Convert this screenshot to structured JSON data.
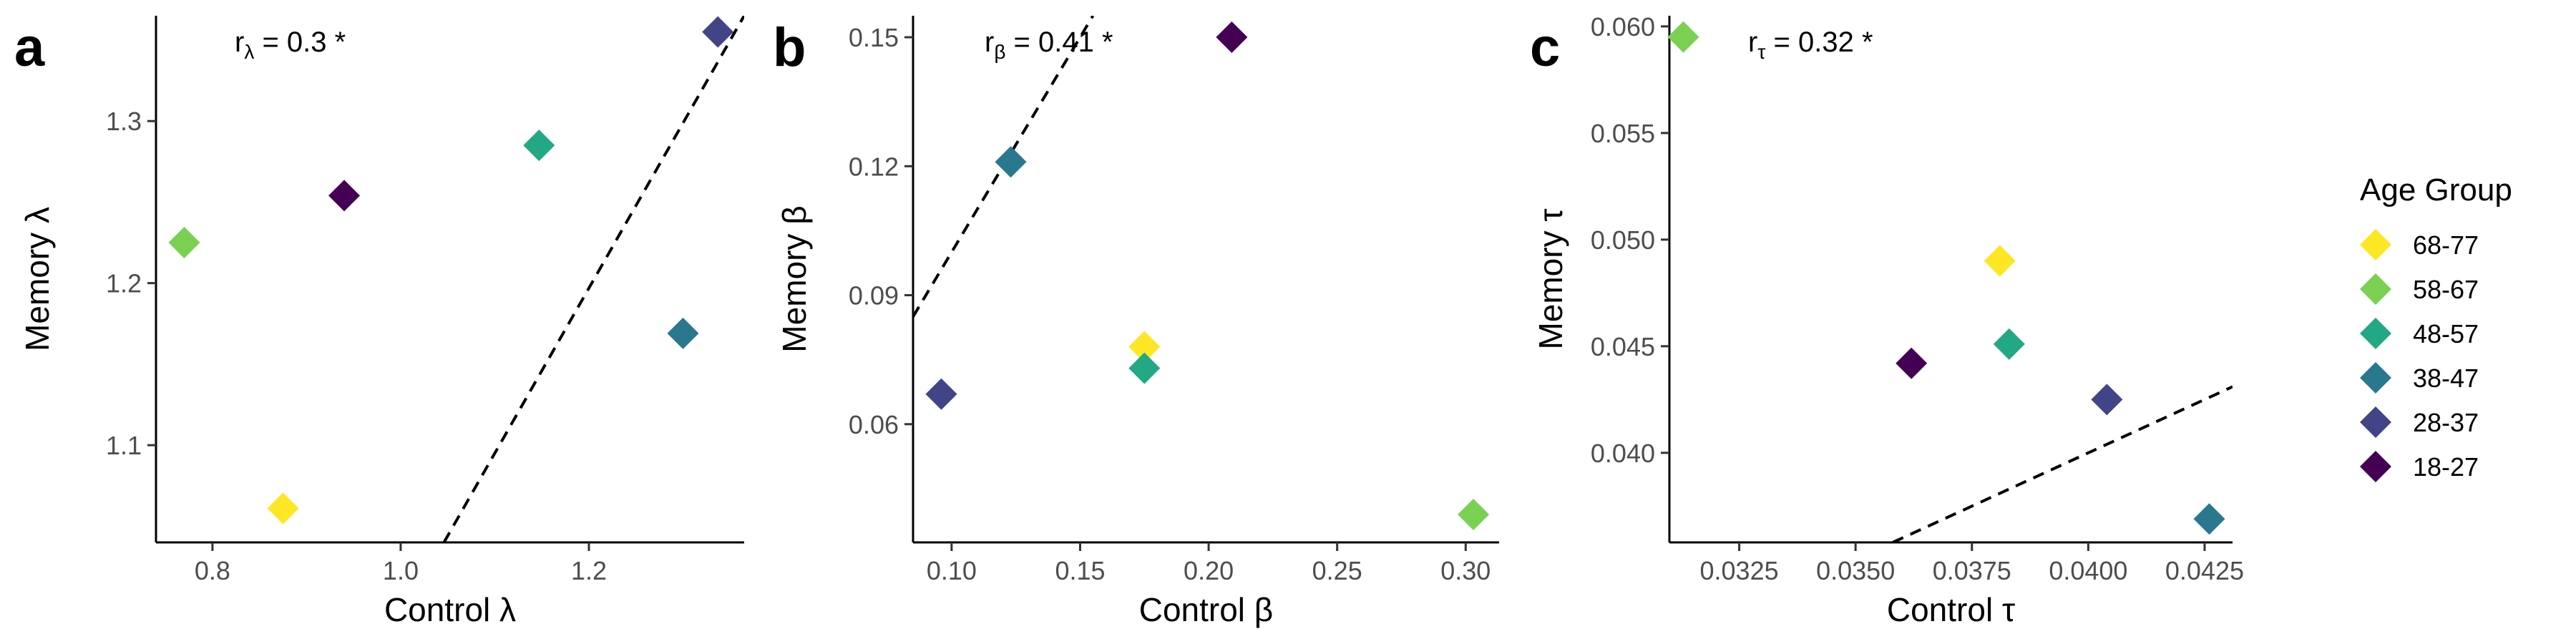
{
  "figure": {
    "legend": {
      "title": "Age Group",
      "placement": "right",
      "entries": [
        {
          "label": "68-77",
          "color": "#FDE725"
        },
        {
          "label": "58-67",
          "color": "#7AD151"
        },
        {
          "label": "48-57",
          "color": "#22A884"
        },
        {
          "label": "38-47",
          "color": "#2A788E"
        },
        {
          "label": "28-37",
          "color": "#414487"
        },
        {
          "label": "18-27",
          "color": "#440154"
        }
      ]
    }
  },
  "chart_data": [
    {
      "type": "scatter",
      "panel_label": "a",
      "annotation": "rλ = 0.3 *",
      "annotation_main": "r",
      "annotation_sub": "λ",
      "annotation_rest": " = 0.3 *",
      "xlabel": "Control λ",
      "ylabel": "Memory λ",
      "xlim": [
        0.74,
        1.365
      ],
      "ylim": [
        1.04,
        1.365
      ],
      "xticks": [
        0.8,
        1.0,
        1.2
      ],
      "xtick_labels": [
        "0.8",
        "1.0",
        "1.2"
      ],
      "yticks": [
        1.1,
        1.2,
        1.3
      ],
      "ytick_labels": [
        "1.1",
        "1.2",
        "1.3"
      ],
      "grid": false,
      "points": [
        {
          "group": "68-77",
          "x": 0.875,
          "y": 1.061
        },
        {
          "group": "58-67",
          "x": 0.77,
          "y": 1.225
        },
        {
          "group": "48-57",
          "x": 1.147,
          "y": 1.285
        },
        {
          "group": "38-47",
          "x": 1.3,
          "y": 1.169
        },
        {
          "group": "28-37",
          "x": 1.337,
          "y": 1.355
        },
        {
          "group": "18-27",
          "x": 0.94,
          "y": 1.254
        }
      ],
      "reference_line": {
        "style": "dashed",
        "x1": 1.046,
        "y1": 1.04,
        "x2": 1.365,
        "y2": 1.365
      }
    },
    {
      "type": "scatter",
      "panel_label": "b",
      "annotation": "rβ = 0.41 *",
      "annotation_main": "r",
      "annotation_sub": "β",
      "annotation_rest": " = 0.41 *",
      "xlabel": "Control β",
      "ylabel": "Memory β",
      "xlim": [
        0.085,
        0.313
      ],
      "ylim": [
        0.0325,
        0.155
      ],
      "xticks": [
        0.1,
        0.15,
        0.2,
        0.25,
        0.3
      ],
      "xtick_labels": [
        "0.10",
        "0.15",
        "0.20",
        "0.25",
        "0.30"
      ],
      "yticks": [
        0.06,
        0.09,
        0.12,
        0.15
      ],
      "ytick_labels": [
        "0.06",
        "0.09",
        "0.12",
        "0.15"
      ],
      "grid": false,
      "points": [
        {
          "group": "68-77",
          "x": 0.175,
          "y": 0.078
        },
        {
          "group": "58-67",
          "x": 0.303,
          "y": 0.039
        },
        {
          "group": "48-57",
          "x": 0.175,
          "y": 0.073
        },
        {
          "group": "38-47",
          "x": 0.123,
          "y": 0.121
        },
        {
          "group": "28-37",
          "x": 0.096,
          "y": 0.067
        },
        {
          "group": "18-27",
          "x": 0.209,
          "y": 0.15
        }
      ],
      "reference_line": {
        "style": "dashed",
        "x1": 0.085,
        "y1": 0.085,
        "x2": 0.155,
        "y2": 0.155
      }
    },
    {
      "type": "scatter",
      "panel_label": "c",
      "annotation": "rτ = 0.32 *",
      "annotation_main": "r",
      "annotation_sub": "τ",
      "annotation_rest": " = 0.32 *",
      "xlabel": "Control τ",
      "ylabel": "Memory τ",
      "xlim": [
        0.031,
        0.0431
      ],
      "ylim": [
        0.0358,
        0.0605
      ],
      "xticks": [
        0.0325,
        0.035,
        0.0375,
        0.04,
        0.0425
      ],
      "xtick_labels": [
        "0.0325",
        "0.0350",
        "0.0375",
        "0.0400",
        "0.0425"
      ],
      "yticks": [
        0.04,
        0.045,
        0.05,
        0.055,
        0.06
      ],
      "ytick_labels": [
        "0.040",
        "0.045",
        "0.050",
        "0.055",
        "0.060"
      ],
      "grid": false,
      "points": [
        {
          "group": "68-77",
          "x": 0.0381,
          "y": 0.049
        },
        {
          "group": "58-67",
          "x": 0.0313,
          "y": 0.0595
        },
        {
          "group": "48-57",
          "x": 0.0383,
          "y": 0.0451
        },
        {
          "group": "38-47",
          "x": 0.0426,
          "y": 0.0369
        },
        {
          "group": "28-37",
          "x": 0.0404,
          "y": 0.0425
        },
        {
          "group": "18-27",
          "x": 0.0362,
          "y": 0.0442
        }
      ],
      "reference_line": {
        "style": "dashed",
        "x1": 0.0358,
        "y1": 0.0358,
        "x2": 0.0431,
        "y2": 0.0431
      }
    }
  ]
}
